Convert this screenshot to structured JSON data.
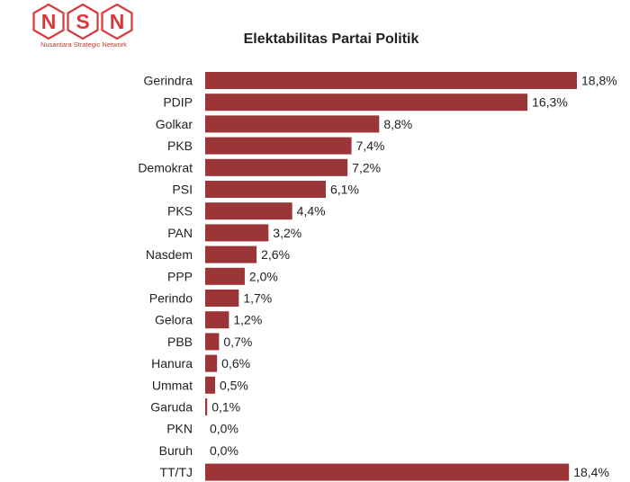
{
  "logo": {
    "letters": [
      "N",
      "S",
      "N"
    ],
    "tagline": "Nusantara Strategic Network",
    "color": "#d9393b"
  },
  "chart_data": {
    "type": "bar",
    "orientation": "horizontal",
    "title": "Elektabilitas Partai Politik",
    "categories": [
      "Gerindra",
      "PDIP",
      "Golkar",
      "PKB",
      "Demokrat",
      "PSI",
      "PKS",
      "PAN",
      "Nasdem",
      "PPP",
      "Perindo",
      "Gelora",
      "PBB",
      "Hanura",
      "Ummat",
      "Garuda",
      "PKN",
      "Buruh",
      "TT/TJ"
    ],
    "values": [
      18.8,
      16.3,
      8.8,
      7.4,
      7.2,
      6.1,
      4.4,
      3.2,
      2.6,
      2.0,
      1.7,
      1.2,
      0.7,
      0.6,
      0.5,
      0.1,
      0.0,
      0.0,
      18.4
    ],
    "value_labels": [
      "18,8%",
      "16,3%",
      "8,8%",
      "7,4%",
      "7,2%",
      "6,1%",
      "4,4%",
      "3,2%",
      "2,6%",
      "2,0%",
      "1,7%",
      "1,2%",
      "0,7%",
      "0,6%",
      "0,5%",
      "0,1%",
      "0,0%",
      "0,0%",
      "18,4%"
    ],
    "bar_color": "#9b3538",
    "xlim": [
      0,
      18.8
    ],
    "grid": false,
    "legend": "none"
  }
}
